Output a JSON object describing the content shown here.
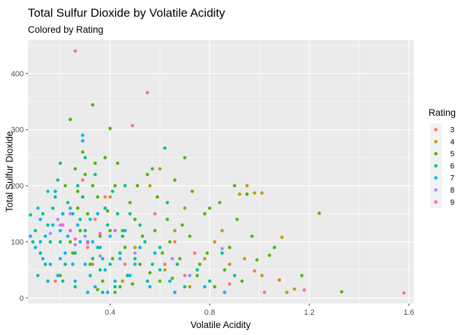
{
  "chart_data": {
    "type": "scatter",
    "title": "Total Sulfur Dioxide by Volatile Acidity",
    "subtitle": "Colored by Rating",
    "xlabel": "Volatile Acidity",
    "ylabel": "Total Sulfur Dioxide",
    "xlim": [
      0.07,
      1.62
    ],
    "ylim": [
      -10,
      460
    ],
    "x_ticks": [
      0.4,
      0.8,
      1.2,
      1.6
    ],
    "x_tick_labels": [
      "0.4",
      "0.8",
      "1.2",
      "1.6"
    ],
    "y_ticks": [
      0,
      100,
      200,
      300,
      400
    ],
    "y_tick_labels": [
      "0",
      "100",
      "200",
      "300",
      "400"
    ],
    "grid": true,
    "legend": {
      "title": "Rating",
      "position": "right",
      "entries": [
        {
          "label": "3",
          "color": "#F8766D"
        },
        {
          "label": "4",
          "color": "#C49A00"
        },
        {
          "label": "5",
          "color": "#53B400"
        },
        {
          "label": "6",
          "color": "#00C094"
        },
        {
          "label": "7",
          "color": "#00B6EB"
        },
        {
          "label": "8",
          "color": "#A58AFF"
        },
        {
          "label": "9",
          "color": "#FB61D7"
        }
      ]
    },
    "series": [
      {
        "name": "3",
        "color": "#F8766D",
        "points": [
          [
            0.26,
            440
          ],
          [
            0.55,
            366
          ],
          [
            0.49,
            307
          ],
          [
            0.38,
            180
          ],
          [
            0.42,
            120
          ],
          [
            0.58,
            150
          ],
          [
            0.66,
            100
          ],
          [
            0.62,
            60
          ],
          [
            0.7,
            40
          ],
          [
            0.98,
            48
          ],
          [
            1.02,
            10
          ],
          [
            1.18,
            14
          ],
          [
            1.58,
            9
          ],
          [
            0.88,
            25
          ],
          [
            0.31,
            90
          ],
          [
            0.18,
            30
          ],
          [
            0.29,
            210
          ],
          [
            0.46,
            60
          ],
          [
            0.74,
            80
          ],
          [
            0.34,
            140
          ]
        ]
      },
      {
        "name": "4",
        "color": "#C49A00",
        "points": [
          [
            0.92,
            185
          ],
          [
            0.98,
            187
          ],
          [
            1.01,
            187
          ],
          [
            0.95,
            200
          ],
          [
            1.09,
            108
          ],
          [
            1.01,
            40
          ],
          [
            1.11,
            10
          ],
          [
            1.14,
            16
          ],
          [
            1.08,
            32
          ],
          [
            0.85,
            120
          ],
          [
            0.78,
            70
          ],
          [
            0.7,
            160
          ],
          [
            0.6,
            230
          ],
          [
            0.5,
            90
          ],
          [
            0.45,
            30
          ],
          [
            0.72,
            20
          ],
          [
            0.88,
            60
          ],
          [
            0.66,
            120
          ],
          [
            0.4,
            180
          ],
          [
            0.56,
            200
          ],
          [
            0.82,
            100
          ],
          [
            0.33,
            60
          ],
          [
            0.62,
            50
          ],
          [
            0.94,
            70
          ]
        ]
      },
      {
        "name": "5",
        "color": "#53B400",
        "points": [
          [
            0.24,
            318
          ],
          [
            0.33,
            344
          ],
          [
            0.4,
            302
          ],
          [
            0.95,
            185
          ],
          [
            1.24,
            151
          ],
          [
            1.17,
            40
          ],
          [
            1.33,
            11
          ],
          [
            1.04,
            76
          ],
          [
            0.99,
            68
          ],
          [
            0.9,
            200
          ],
          [
            0.84,
            170
          ],
          [
            0.78,
            150
          ],
          [
            0.7,
            250
          ],
          [
            0.64,
            100
          ],
          [
            0.59,
            180
          ],
          [
            0.55,
            220
          ],
          [
            0.5,
            140
          ],
          [
            0.46,
            90
          ],
          [
            0.42,
            200
          ],
          [
            0.38,
            250
          ],
          [
            0.35,
            180
          ],
          [
            0.3,
            220
          ],
          [
            0.27,
            160
          ],
          [
            0.24,
            100
          ],
          [
            0.2,
            40
          ],
          [
            0.22,
            200
          ],
          [
            0.28,
            120
          ],
          [
            0.32,
            60
          ],
          [
            0.37,
            30
          ],
          [
            0.44,
            20
          ],
          [
            0.52,
            60
          ],
          [
            0.6,
            30
          ],
          [
            0.68,
            70
          ],
          [
            0.75,
            40
          ],
          [
            0.82,
            20
          ],
          [
            0.88,
            90
          ],
          [
            0.93,
            30
          ],
          [
            0.97,
            110
          ],
          [
            1.06,
            90
          ],
          [
            0.58,
            120
          ],
          [
            0.48,
            170
          ],
          [
            0.4,
            120
          ],
          [
            0.34,
            240
          ],
          [
            0.29,
            260
          ],
          [
            0.26,
            230
          ],
          [
            0.31,
            150
          ],
          [
            0.36,
            110
          ],
          [
            0.41,
            70
          ],
          [
            0.47,
            40
          ],
          [
            0.53,
            110
          ],
          [
            0.63,
            140
          ],
          [
            0.72,
            110
          ],
          [
            0.79,
            80
          ],
          [
            0.86,
            50
          ],
          [
            0.91,
            140
          ],
          [
            0.57,
            230
          ],
          [
            0.66,
            210
          ],
          [
            0.73,
            190
          ],
          [
            0.8,
            160
          ],
          [
            0.43,
            240
          ],
          [
            0.39,
            155
          ],
          [
            0.25,
            80
          ],
          [
            0.21,
            150
          ],
          [
            0.27,
            190
          ],
          [
            0.33,
            200
          ],
          [
            0.45,
            120
          ],
          [
            0.51,
            200
          ],
          [
            0.61,
            80
          ],
          [
            0.69,
            130
          ],
          [
            0.76,
            60
          ],
          [
            0.65,
            35
          ],
          [
            0.56,
            45
          ],
          [
            0.49,
            25
          ],
          [
            0.42,
            10
          ],
          [
            0.35,
            15
          ]
        ]
      },
      {
        "name": "6",
        "color": "#00C094",
        "points": [
          [
            0.08,
            148
          ],
          [
            0.12,
            80
          ],
          [
            0.15,
            130
          ],
          [
            0.18,
            190
          ],
          [
            0.2,
            100
          ],
          [
            0.22,
            60
          ],
          [
            0.25,
            150
          ],
          [
            0.27,
            200
          ],
          [
            0.3,
            120
          ],
          [
            0.32,
            40
          ],
          [
            0.35,
            90
          ],
          [
            0.38,
            160
          ],
          [
            0.4,
            60
          ],
          [
            0.42,
            20
          ],
          [
            0.45,
            110
          ],
          [
            0.48,
            150
          ],
          [
            0.5,
            70
          ],
          [
            0.55,
            30
          ],
          [
            0.6,
            90
          ],
          [
            0.63,
            170
          ],
          [
            0.67,
            60
          ],
          [
            0.7,
            20
          ],
          [
            0.75,
            50
          ],
          [
            0.8,
            30
          ],
          [
            0.85,
            80
          ],
          [
            0.9,
            40
          ],
          [
            0.62,
            267
          ],
          [
            0.1,
            120
          ],
          [
            0.14,
            60
          ],
          [
            0.17,
            160
          ],
          [
            0.19,
            210
          ],
          [
            0.21,
            30
          ],
          [
            0.24,
            120
          ],
          [
            0.26,
            80
          ],
          [
            0.29,
            180
          ],
          [
            0.31,
            100
          ],
          [
            0.34,
            220
          ],
          [
            0.36,
            50
          ],
          [
            0.39,
            130
          ],
          [
            0.41,
            190
          ],
          [
            0.44,
            80
          ],
          [
            0.47,
            40
          ],
          [
            0.52,
            130
          ],
          [
            0.57,
            60
          ],
          [
            0.16,
            100
          ],
          [
            0.23,
            170
          ],
          [
            0.28,
            140
          ],
          [
            0.33,
            70
          ],
          [
            0.37,
            10
          ],
          [
            0.43,
            150
          ],
          [
            0.13,
            150
          ],
          [
            0.09,
            100
          ],
          [
            0.11,
            40
          ],
          [
            0.2,
            240
          ],
          [
            0.26,
            20
          ],
          [
            0.3,
            250
          ],
          [
            0.46,
            200
          ],
          [
            0.54,
            100
          ]
        ]
      },
      {
        "name": "7",
        "color": "#00B6EB",
        "points": [
          [
            0.29,
            290
          ],
          [
            0.29,
            280
          ],
          [
            0.1,
            90
          ],
          [
            0.12,
            140
          ],
          [
            0.14,
            110
          ],
          [
            0.16,
            60
          ],
          [
            0.18,
            180
          ],
          [
            0.2,
            120
          ],
          [
            0.22,
            80
          ],
          [
            0.24,
            160
          ],
          [
            0.26,
            30
          ],
          [
            0.28,
            100
          ],
          [
            0.3,
            60
          ],
          [
            0.32,
            140
          ],
          [
            0.34,
            20
          ],
          [
            0.36,
            90
          ],
          [
            0.38,
            50
          ],
          [
            0.4,
            110
          ],
          [
            0.42,
            30
          ],
          [
            0.44,
            70
          ],
          [
            0.48,
            40
          ],
          [
            0.52,
            90
          ],
          [
            0.56,
            20
          ],
          [
            0.6,
            50
          ],
          [
            0.66,
            10
          ],
          [
            0.72,
            40
          ],
          [
            0.78,
            20
          ],
          [
            0.86,
            10
          ],
          [
            0.08,
            110
          ],
          [
            0.11,
            160
          ],
          [
            0.13,
            70
          ],
          [
            0.15,
            190
          ],
          [
            0.17,
            130
          ],
          [
            0.19,
            40
          ],
          [
            0.21,
            150
          ],
          [
            0.23,
            110
          ],
          [
            0.25,
            60
          ],
          [
            0.27,
            130
          ],
          [
            0.31,
            10
          ],
          [
            0.33,
            100
          ],
          [
            0.35,
            150
          ],
          [
            0.37,
            70
          ],
          [
            0.39,
            10
          ],
          [
            0.46,
            120
          ],
          [
            0.5,
            60
          ],
          [
            0.15,
            30
          ],
          [
            0.12,
            100
          ],
          [
            0.2,
            70
          ],
          [
            0.58,
            80
          ],
          [
            0.64,
            30
          ]
        ]
      },
      {
        "name": "8",
        "color": "#A58AFF",
        "points": [
          [
            0.85,
            88
          ],
          [
            0.2,
            130
          ],
          [
            0.16,
            115
          ],
          [
            0.24,
            150
          ],
          [
            0.3,
            110
          ],
          [
            0.36,
            75
          ],
          [
            0.26,
            95
          ],
          [
            0.42,
            120
          ],
          [
            0.5,
            80
          ],
          [
            0.65,
            70
          ],
          [
            0.72,
            40
          ],
          [
            0.19,
            140
          ]
        ]
      },
      {
        "name": "9",
        "color": "#FB61D7",
        "points": [
          [
            0.21,
            130
          ],
          [
            0.24,
            120
          ],
          [
            0.26,
            105
          ],
          [
            0.31,
            98
          ],
          [
            0.36,
            115
          ]
        ]
      }
    ]
  }
}
